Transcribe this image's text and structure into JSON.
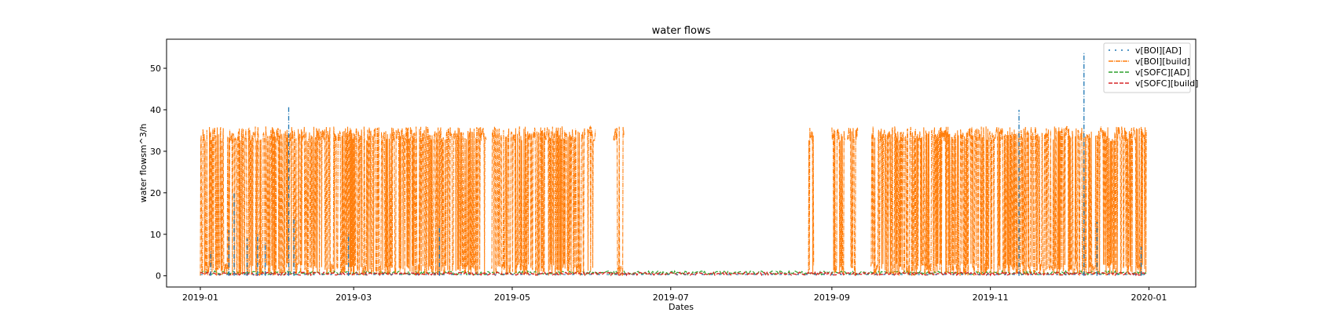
{
  "chart_data": {
    "type": "line",
    "title": "water flows",
    "xlabel": "Dates",
    "ylabel": "water flowsm^3/h",
    "xlim": [
      "2018-12-19",
      "2020-01-19"
    ],
    "ylim": [
      -2.7,
      57
    ],
    "x_ticks": [
      "2019-01",
      "2019-03",
      "2019-05",
      "2019-07",
      "2019-09",
      "2019-11",
      "2020-01"
    ],
    "y_ticks": [
      0,
      10,
      20,
      30,
      40,
      50
    ],
    "grid": false,
    "legend_position": "top-right",
    "series": [
      {
        "name": "v[BOI][AD]",
        "color": "#1f77b4",
        "style": "dashdot-sparse",
        "baseline": 0.3,
        "spikes": [
          {
            "x": "2019-01-05",
            "y": 6
          },
          {
            "x": "2019-01-12",
            "y": 11
          },
          {
            "x": "2019-01-14",
            "y": 20
          },
          {
            "x": "2019-01-19",
            "y": 9
          },
          {
            "x": "2019-01-23",
            "y": 10
          },
          {
            "x": "2019-01-26",
            "y": 8
          },
          {
            "x": "2019-02-04",
            "y": 41
          },
          {
            "x": "2019-02-06",
            "y": 14
          },
          {
            "x": "2019-02-27",
            "y": 10
          },
          {
            "x": "2019-04-03",
            "y": 12
          },
          {
            "x": "2019-11-12",
            "y": 40
          },
          {
            "x": "2019-12-07",
            "y": 54
          },
          {
            "x": "2019-12-12",
            "y": 13
          },
          {
            "x": "2019-12-29",
            "y": 7
          }
        ]
      },
      {
        "name": "v[BOI][build]",
        "color": "#ff7f0e",
        "style": "dashdot",
        "max": 36,
        "active_periods": [
          [
            "2019-01-01",
            "2019-02-08"
          ],
          [
            "2019-02-08",
            "2019-04-21"
          ],
          [
            "2019-04-23",
            "2019-05-29"
          ],
          [
            "2019-05-30",
            "2019-06-02"
          ],
          [
            "2019-06-09",
            "2019-06-13"
          ],
          [
            "2019-08-23",
            "2019-08-25"
          ],
          [
            "2019-09-01",
            "2019-09-06"
          ],
          [
            "2019-09-07",
            "2019-09-11"
          ],
          [
            "2019-09-16",
            "2019-12-31"
          ]
        ]
      },
      {
        "name": "v[SOFC][AD]",
        "color": "#2ca02c",
        "style": "dashed",
        "typical": 0.7
      },
      {
        "name": "v[SOFC][build]",
        "color": "#d62728",
        "style": "dashed",
        "typical": 0.5
      }
    ]
  }
}
